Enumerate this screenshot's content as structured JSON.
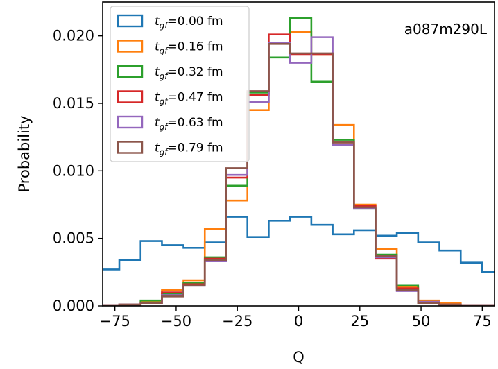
{
  "chart_data": {
    "type": "histogram-step",
    "title": "",
    "xlabel": "Q",
    "ylabel": "Probability",
    "xlim": [
      -80,
      80
    ],
    "ylim": [
      0,
      0.0225
    ],
    "xticks": [
      -75,
      -50,
      -25,
      0,
      25,
      50,
      75
    ],
    "xtick_labels": [
      "−75",
      "−50",
      "−25",
      "0",
      "25",
      "50",
      "75"
    ],
    "yticks": [
      0,
      0.005,
      0.01,
      0.015,
      0.02
    ],
    "ytick_labels": [
      "0.000",
      "0.005",
      "0.010",
      "0.015",
      "0.020"
    ],
    "annotation": "a087m290L",
    "bin_edges": [
      -81.9,
      -73.2,
      -64.5,
      -55.8,
      -47.0,
      -38.3,
      -29.6,
      -20.9,
      -12.2,
      -3.5,
      5.2,
      13.9,
      22.6,
      31.4,
      40.1,
      48.8,
      57.5,
      66.2,
      74.9,
      83.6
    ],
    "series": [
      {
        "name": "tgf=0.00 fm",
        "t": "t",
        "sub": "gf",
        "label_rest": "=0.00 fm",
        "color": "#1f77b4",
        "values": [
          0.0027,
          0.0034,
          0.0048,
          0.0045,
          0.0043,
          0.0047,
          0.0066,
          0.0051,
          0.0063,
          0.0066,
          0.006,
          0.0053,
          0.0056,
          0.0052,
          0.0054,
          0.0047,
          0.0041,
          0.0032,
          0.0025
        ]
      },
      {
        "name": "tgf=0.16 fm",
        "t": "t",
        "sub": "gf",
        "label_rest": "=0.16 fm",
        "color": "#ff7f0e",
        "values": [
          0.0,
          0.0001,
          0.0003,
          0.0012,
          0.0019,
          0.0057,
          0.0078,
          0.0145,
          0.0195,
          0.0203,
          0.0186,
          0.0134,
          0.0075,
          0.0042,
          0.0014,
          0.0004,
          0.0002,
          0.0,
          0.0
        ]
      },
      {
        "name": "tgf=0.32 fm",
        "t": "t",
        "sub": "gf",
        "label_rest": "=0.32 fm",
        "color": "#2ca02c",
        "values": [
          0.0,
          0.0001,
          0.0004,
          0.0009,
          0.0017,
          0.0036,
          0.0089,
          0.0158,
          0.0184,
          0.0213,
          0.0166,
          0.0123,
          0.0072,
          0.0038,
          0.0015,
          0.0003,
          0.0001,
          0.0,
          0.0
        ]
      },
      {
        "name": "tgf=0.47 fm",
        "t": "t",
        "sub": "gf",
        "label_rest": "=0.47 fm",
        "color": "#d62728",
        "values": [
          0.0,
          0.0001,
          0.0002,
          0.001,
          0.0016,
          0.0035,
          0.0095,
          0.0156,
          0.0201,
          0.0186,
          0.0186,
          0.0121,
          0.0074,
          0.0035,
          0.0013,
          0.0003,
          0.0001,
          0.0,
          0.0
        ]
      },
      {
        "name": "tgf=0.63 fm",
        "t": "t",
        "sub": "gf",
        "label_rest": "=0.63 fm",
        "color": "#9467bd",
        "values": [
          0.0,
          0.0001,
          0.0002,
          0.0008,
          0.0015,
          0.0033,
          0.0097,
          0.0151,
          0.0195,
          0.018,
          0.0199,
          0.0119,
          0.0072,
          0.0036,
          0.0011,
          0.0003,
          0.0001,
          0.0,
          0.0
        ]
      },
      {
        "name": "tgf=0.79 fm",
        "t": "t",
        "sub": "gf",
        "label_rest": "=0.79 fm",
        "color": "#8c564b",
        "values": [
          0.0,
          0.0001,
          0.0002,
          0.0007,
          0.0015,
          0.0034,
          0.0102,
          0.0159,
          0.0194,
          0.0187,
          0.0187,
          0.0121,
          0.0073,
          0.0037,
          0.0012,
          0.0002,
          0.0001,
          0.0,
          0.0
        ]
      }
    ]
  }
}
